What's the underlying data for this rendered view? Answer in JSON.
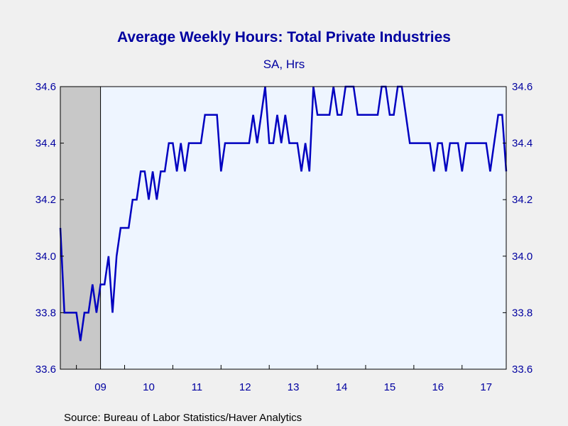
{
  "chart_data": {
    "type": "line",
    "title": "Average Weekly Hours: Total Private Industries",
    "subtitle": "SA, Hrs",
    "source": "Source:  Bureau of Labor Statistics/Haver Analytics",
    "ylim": [
      33.6,
      34.6
    ],
    "yticks": [
      "33.6",
      "33.8",
      "34.0",
      "34.2",
      "34.4",
      "34.6"
    ],
    "yticks_right": [
      "33.6",
      "33.8",
      "34.0",
      "34.2",
      "34.4",
      "34.6"
    ],
    "x_start": "2008-09",
    "x_range": [
      "2008-09",
      "2017-12"
    ],
    "x_tick_labels": [
      {
        "label": "09",
        "year": 2009
      },
      {
        "label": "10",
        "year": 2010
      },
      {
        "label": "11",
        "year": 2011
      },
      {
        "label": "12",
        "year": 2012
      },
      {
        "label": "13",
        "year": 2013
      },
      {
        "label": "14",
        "year": 2014
      },
      {
        "label": "15",
        "year": 2015
      },
      {
        "label": "16",
        "year": 2016
      },
      {
        "label": "17",
        "year": 2017
      }
    ],
    "recession": {
      "start": "2008-09",
      "end": "2009-06"
    },
    "grid": false,
    "colors": {
      "line": "#0000c0",
      "recession": "#c8c8c8",
      "plot_bg": "#eef5ff",
      "text": "#0000a0"
    },
    "series": [
      {
        "values": [
          34.1,
          33.8,
          33.8,
          33.8,
          33.8,
          33.7,
          33.8,
          33.8,
          33.9,
          33.8,
          33.9,
          33.9,
          34.0,
          33.8,
          34.0,
          34.1,
          34.1,
          34.1,
          34.2,
          34.2,
          34.3,
          34.3,
          34.2,
          34.3,
          34.2,
          34.3,
          34.3,
          34.4,
          34.4,
          34.3,
          34.4,
          34.3,
          34.4,
          34.4,
          34.4,
          34.4,
          34.5,
          34.5,
          34.5,
          34.5,
          34.3,
          34.4,
          34.4,
          34.4,
          34.4,
          34.4,
          34.4,
          34.4,
          34.5,
          34.4,
          34.5,
          34.6,
          34.4,
          34.4,
          34.5,
          34.4,
          34.5,
          34.4,
          34.4,
          34.4,
          34.3,
          34.4,
          34.3,
          34.6,
          34.5,
          34.5,
          34.5,
          34.5,
          34.6,
          34.5,
          34.5,
          34.6,
          34.6,
          34.6,
          34.5,
          34.5,
          34.5,
          34.5,
          34.5,
          34.5,
          34.6,
          34.6,
          34.5,
          34.5,
          34.6,
          34.6,
          34.5,
          34.4,
          34.4,
          34.4,
          34.4,
          34.4,
          34.4,
          34.3,
          34.4,
          34.4,
          34.3,
          34.4,
          34.4,
          34.4,
          34.3,
          34.4,
          34.4,
          34.4,
          34.4,
          34.4,
          34.4,
          34.3,
          34.4,
          34.5,
          34.5,
          34.3
        ]
      }
    ]
  }
}
